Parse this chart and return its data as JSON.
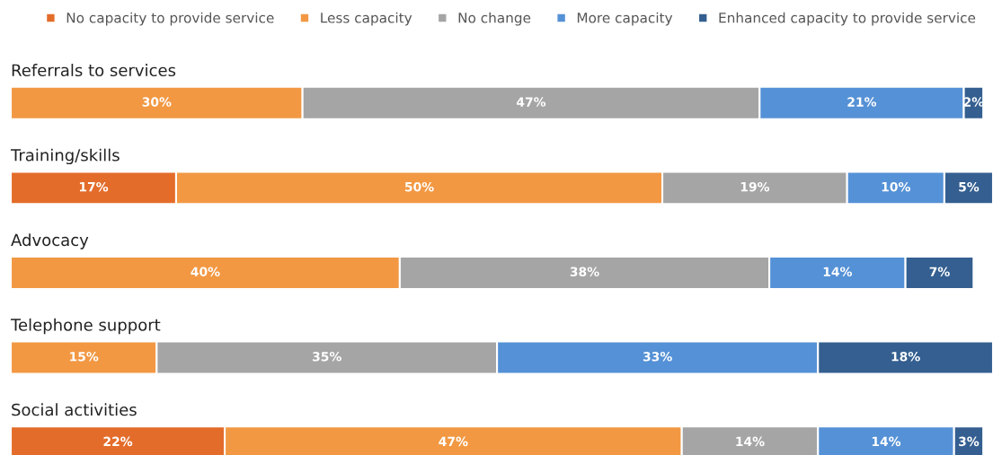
{
  "chart_data": {
    "type": "bar",
    "orientation": "horizontal",
    "stacked": true,
    "legend": "top",
    "categories": [
      "Referrals to services",
      "Training/skills",
      "Advocacy",
      "Telephone support",
      "Social activities"
    ],
    "series": [
      {
        "name": "No capacity to provide service",
        "color": "#e46c2a",
        "values": [
          null,
          17,
          null,
          null,
          22
        ],
        "value_labels": [
          null,
          "17%",
          null,
          null,
          "22%"
        ]
      },
      {
        "name": "Less capacity",
        "color": "#f29843",
        "values": [
          30,
          50,
          40,
          15,
          47
        ],
        "value_labels": [
          "30%",
          "50%",
          "40%",
          "15%",
          "47%"
        ]
      },
      {
        "name": "No change",
        "color": "#a5a5a5",
        "values": [
          47,
          19,
          38,
          35,
          14
        ],
        "value_labels": [
          "47%",
          "19%",
          "38%",
          "35%",
          "14%"
        ]
      },
      {
        "name": "More capacity",
        "color": "#5591d6",
        "values": [
          21,
          10,
          14,
          33,
          14
        ],
        "value_labels": [
          "21%",
          "10%",
          "14%",
          "33%",
          "14%"
        ]
      },
      {
        "name": "Enhanced capacity to provide service",
        "color": "#345f90",
        "values": [
          2,
          5,
          7,
          18,
          3
        ],
        "value_labels": [
          "2%",
          "5%",
          "7%",
          "18%",
          "3%"
        ]
      }
    ]
  }
}
